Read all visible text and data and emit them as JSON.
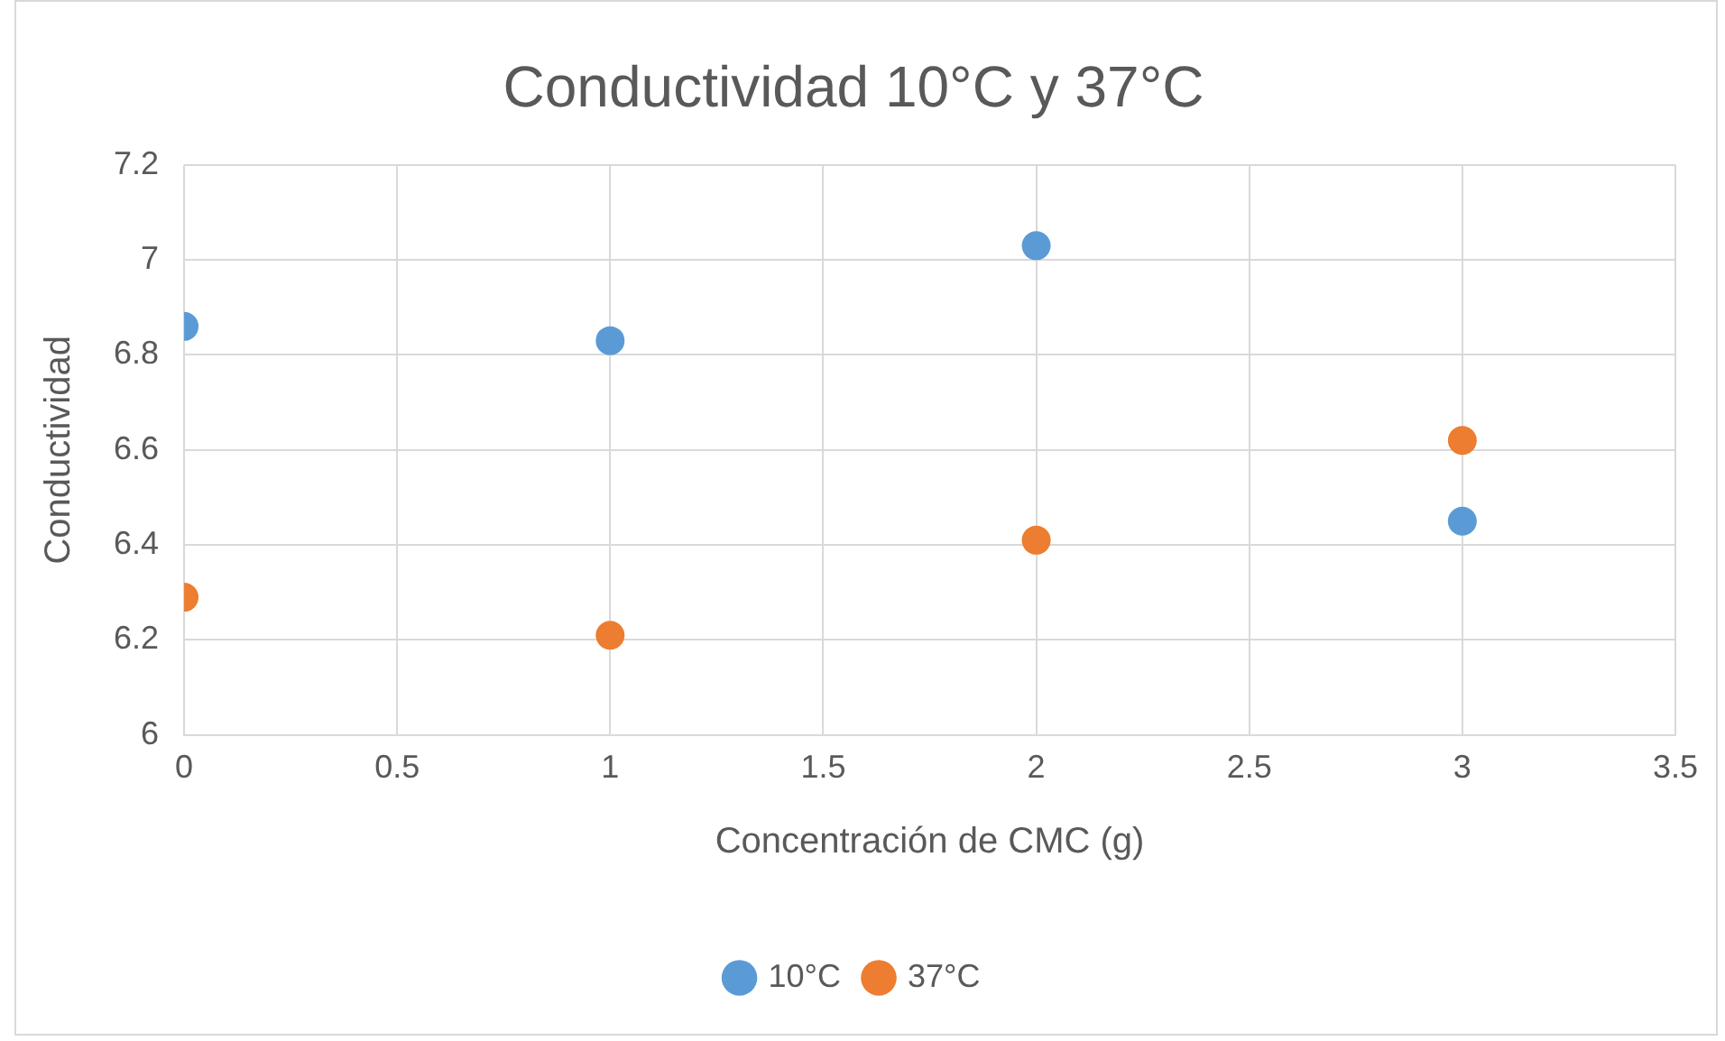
{
  "chart_data": {
    "type": "scatter",
    "title": "Conductividad 10°C y 37°C",
    "xlabel": "Concentración de CMC (g)",
    "ylabel": "Conductividad",
    "x": [
      0,
      1,
      2,
      3
    ],
    "series": [
      {
        "name": "10°C",
        "color": "#5b9bd5",
        "values": [
          6.86,
          6.83,
          7.03,
          6.45
        ]
      },
      {
        "name": "37°C",
        "color": "#ed7d31",
        "values": [
          6.29,
          6.21,
          6.41,
          6.62
        ]
      }
    ],
    "xlim": [
      0,
      3.5
    ],
    "xticks": [
      0,
      0.5,
      1,
      1.5,
      2,
      2.5,
      3,
      3.5
    ],
    "ylim": [
      6,
      7.2
    ],
    "yticks": [
      6,
      6.2,
      6.4,
      6.6,
      6.8,
      7,
      7.2
    ],
    "grid": true,
    "legend": "bottom",
    "marker": "circle"
  }
}
